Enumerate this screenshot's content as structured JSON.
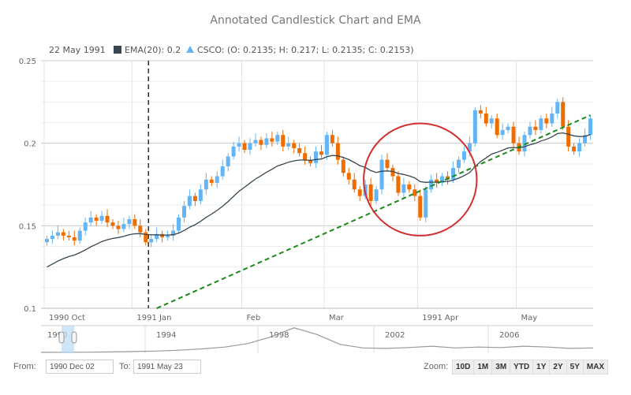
{
  "chart_data": {
    "type": "candlestick",
    "title": "Annotated Candlestick Chart and EMA",
    "legend": {
      "date": "22 May 1991",
      "ema_label": "EMA(20): 0.2",
      "csco_label": "CSCO: (O: 0.2135; H: 0.217; L: 0.2135; C: 0.2153)"
    },
    "colors": {
      "rising": "#64b5f6",
      "falling": "#ef6c00",
      "ema": "#37474f",
      "trend": "#1b8a1b",
      "ellipse": "#d32f2f",
      "grid": "#e6e6e6"
    },
    "ylim": [
      0.1,
      0.25
    ],
    "yticks": [
      "0.1",
      "0.15",
      "0.2",
      "0.25"
    ],
    "yticks_values": [
      0.1,
      0.15,
      0.2,
      0.25
    ],
    "xticks": [
      {
        "label": "1990 Oct",
        "index": 0
      },
      {
        "label": "1991 Jan",
        "index": 16
      },
      {
        "label": "Feb",
        "index": 36
      },
      {
        "label": "Mar",
        "index": 51
      },
      {
        "label": "1991 Apr",
        "index": 68
      },
      {
        "label": "May",
        "index": 86
      }
    ],
    "first_open": 0.14,
    "closes": [
      0.142,
      0.144,
      0.146,
      0.144,
      0.143,
      0.141,
      0.147,
      0.152,
      0.155,
      0.153,
      0.156,
      0.152,
      0.15,
      0.148,
      0.151,
      0.154,
      0.15,
      0.146,
      0.14,
      0.142,
      0.145,
      0.143,
      0.144,
      0.147,
      0.155,
      0.162,
      0.168,
      0.165,
      0.172,
      0.178,
      0.176,
      0.18,
      0.186,
      0.192,
      0.198,
      0.2,
      0.196,
      0.2,
      0.202,
      0.199,
      0.203,
      0.201,
      0.205,
      0.198,
      0.2,
      0.197,
      0.194,
      0.19,
      0.188,
      0.195,
      0.193,
      0.205,
      0.2,
      0.19,
      0.182,
      0.178,
      0.172,
      0.168,
      0.175,
      0.165,
      0.172,
      0.19,
      0.185,
      0.18,
      0.17,
      0.175,
      0.172,
      0.168,
      0.155,
      0.172,
      0.178,
      0.176,
      0.18,
      0.178,
      0.185,
      0.19,
      0.195,
      0.2,
      0.22,
      0.218,
      0.212,
      0.215,
      0.205,
      0.208,
      0.21,
      0.2,
      0.195,
      0.205,
      0.21,
      0.208,
      0.215,
      0.212,
      0.218,
      0.225,
      0.21,
      0.198,
      0.195,
      0.2,
      0.205,
      0.215
    ],
    "ema_period": 20,
    "annotations": {
      "marker_line_index": 18.5,
      "trend_line": {
        "from": [
          20,
          0.1
        ],
        "to": [
          99,
          0.217
        ]
      },
      "ellipse": {
        "center": [
          68,
          0.178
        ],
        "radius_index": 10.3,
        "radius_value": 0.034
      }
    },
    "navigator": {
      "labels": [
        "1990",
        "1994",
        "1998",
        "2002",
        "2006"
      ],
      "values": [
        0.2,
        0.3,
        0.5,
        1,
        2,
        3,
        5,
        8,
        12,
        20,
        35,
        55,
        40,
        18,
        10,
        9,
        11,
        14,
        10,
        12,
        11,
        14,
        12,
        9,
        10
      ]
    }
  },
  "range": {
    "from_label": "From:",
    "from_value": "1990 Dec 02",
    "to_label": "To:",
    "to_value": "1991 May 23"
  },
  "zoom": {
    "label": "Zoom:",
    "buttons": [
      "10D",
      "1M",
      "3M",
      "YTD",
      "1Y",
      "2Y",
      "5Y",
      "MAX"
    ]
  }
}
